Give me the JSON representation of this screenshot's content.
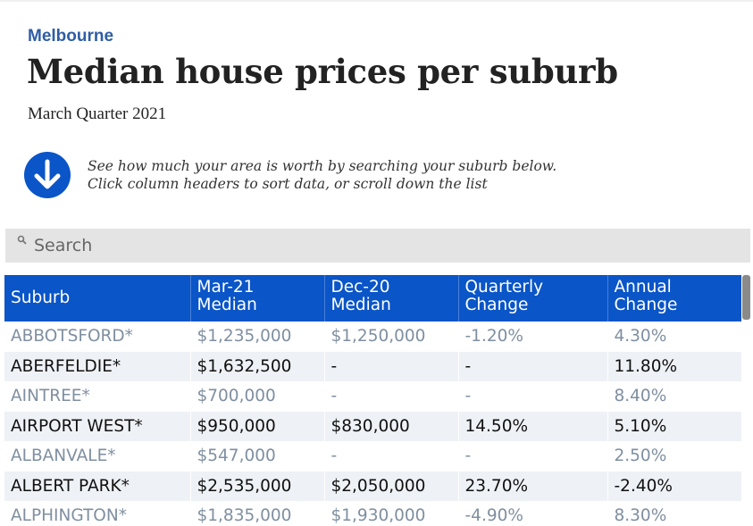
{
  "header": {
    "kicker": "Melbourne",
    "title": "Median house prices per suburb",
    "subtitle": "March Quarter 2021"
  },
  "instructions": {
    "icon": "arrow-down-circle-icon",
    "line1": "See how much your area is worth by searching your suburb below.",
    "line2": "Click column headers to sort data, or scroll down the list"
  },
  "search": {
    "icon": "search-icon",
    "placeholder": "Search",
    "value": ""
  },
  "colors": {
    "accent": "#0a55c7",
    "kicker": "#2f5da6"
  },
  "table": {
    "columns": [
      {
        "line1": "Suburb",
        "line2": ""
      },
      {
        "line1": "Mar-21",
        "line2": "Median"
      },
      {
        "line1": "Dec-20",
        "line2": "Median"
      },
      {
        "line1": "Quarterly",
        "line2": "Change"
      },
      {
        "line1": "Annual",
        "line2": "Change"
      }
    ],
    "rows": [
      [
        "ABBOTSFORD*",
        "$1,235,000",
        "$1,250,000",
        "-1.20%",
        "4.30%"
      ],
      [
        "ABERFELDIE*",
        "$1,632,500",
        "-",
        "-",
        "11.80%"
      ],
      [
        "AINTREE*",
        "$700,000",
        "-",
        "-",
        "8.40%"
      ],
      [
        "AIRPORT WEST*",
        "$950,000",
        "$830,000",
        "14.50%",
        "5.10%"
      ],
      [
        "ALBANVALE*",
        "$547,000",
        "-",
        "-",
        "2.50%"
      ],
      [
        "ALBERT PARK*",
        "$2,535,000",
        "$2,050,000",
        "23.70%",
        "-2.40%"
      ],
      [
        "ALPHINGTON*",
        "$1,835,000",
        "$1,930,000",
        "-4.90%",
        "8.30%"
      ]
    ]
  }
}
